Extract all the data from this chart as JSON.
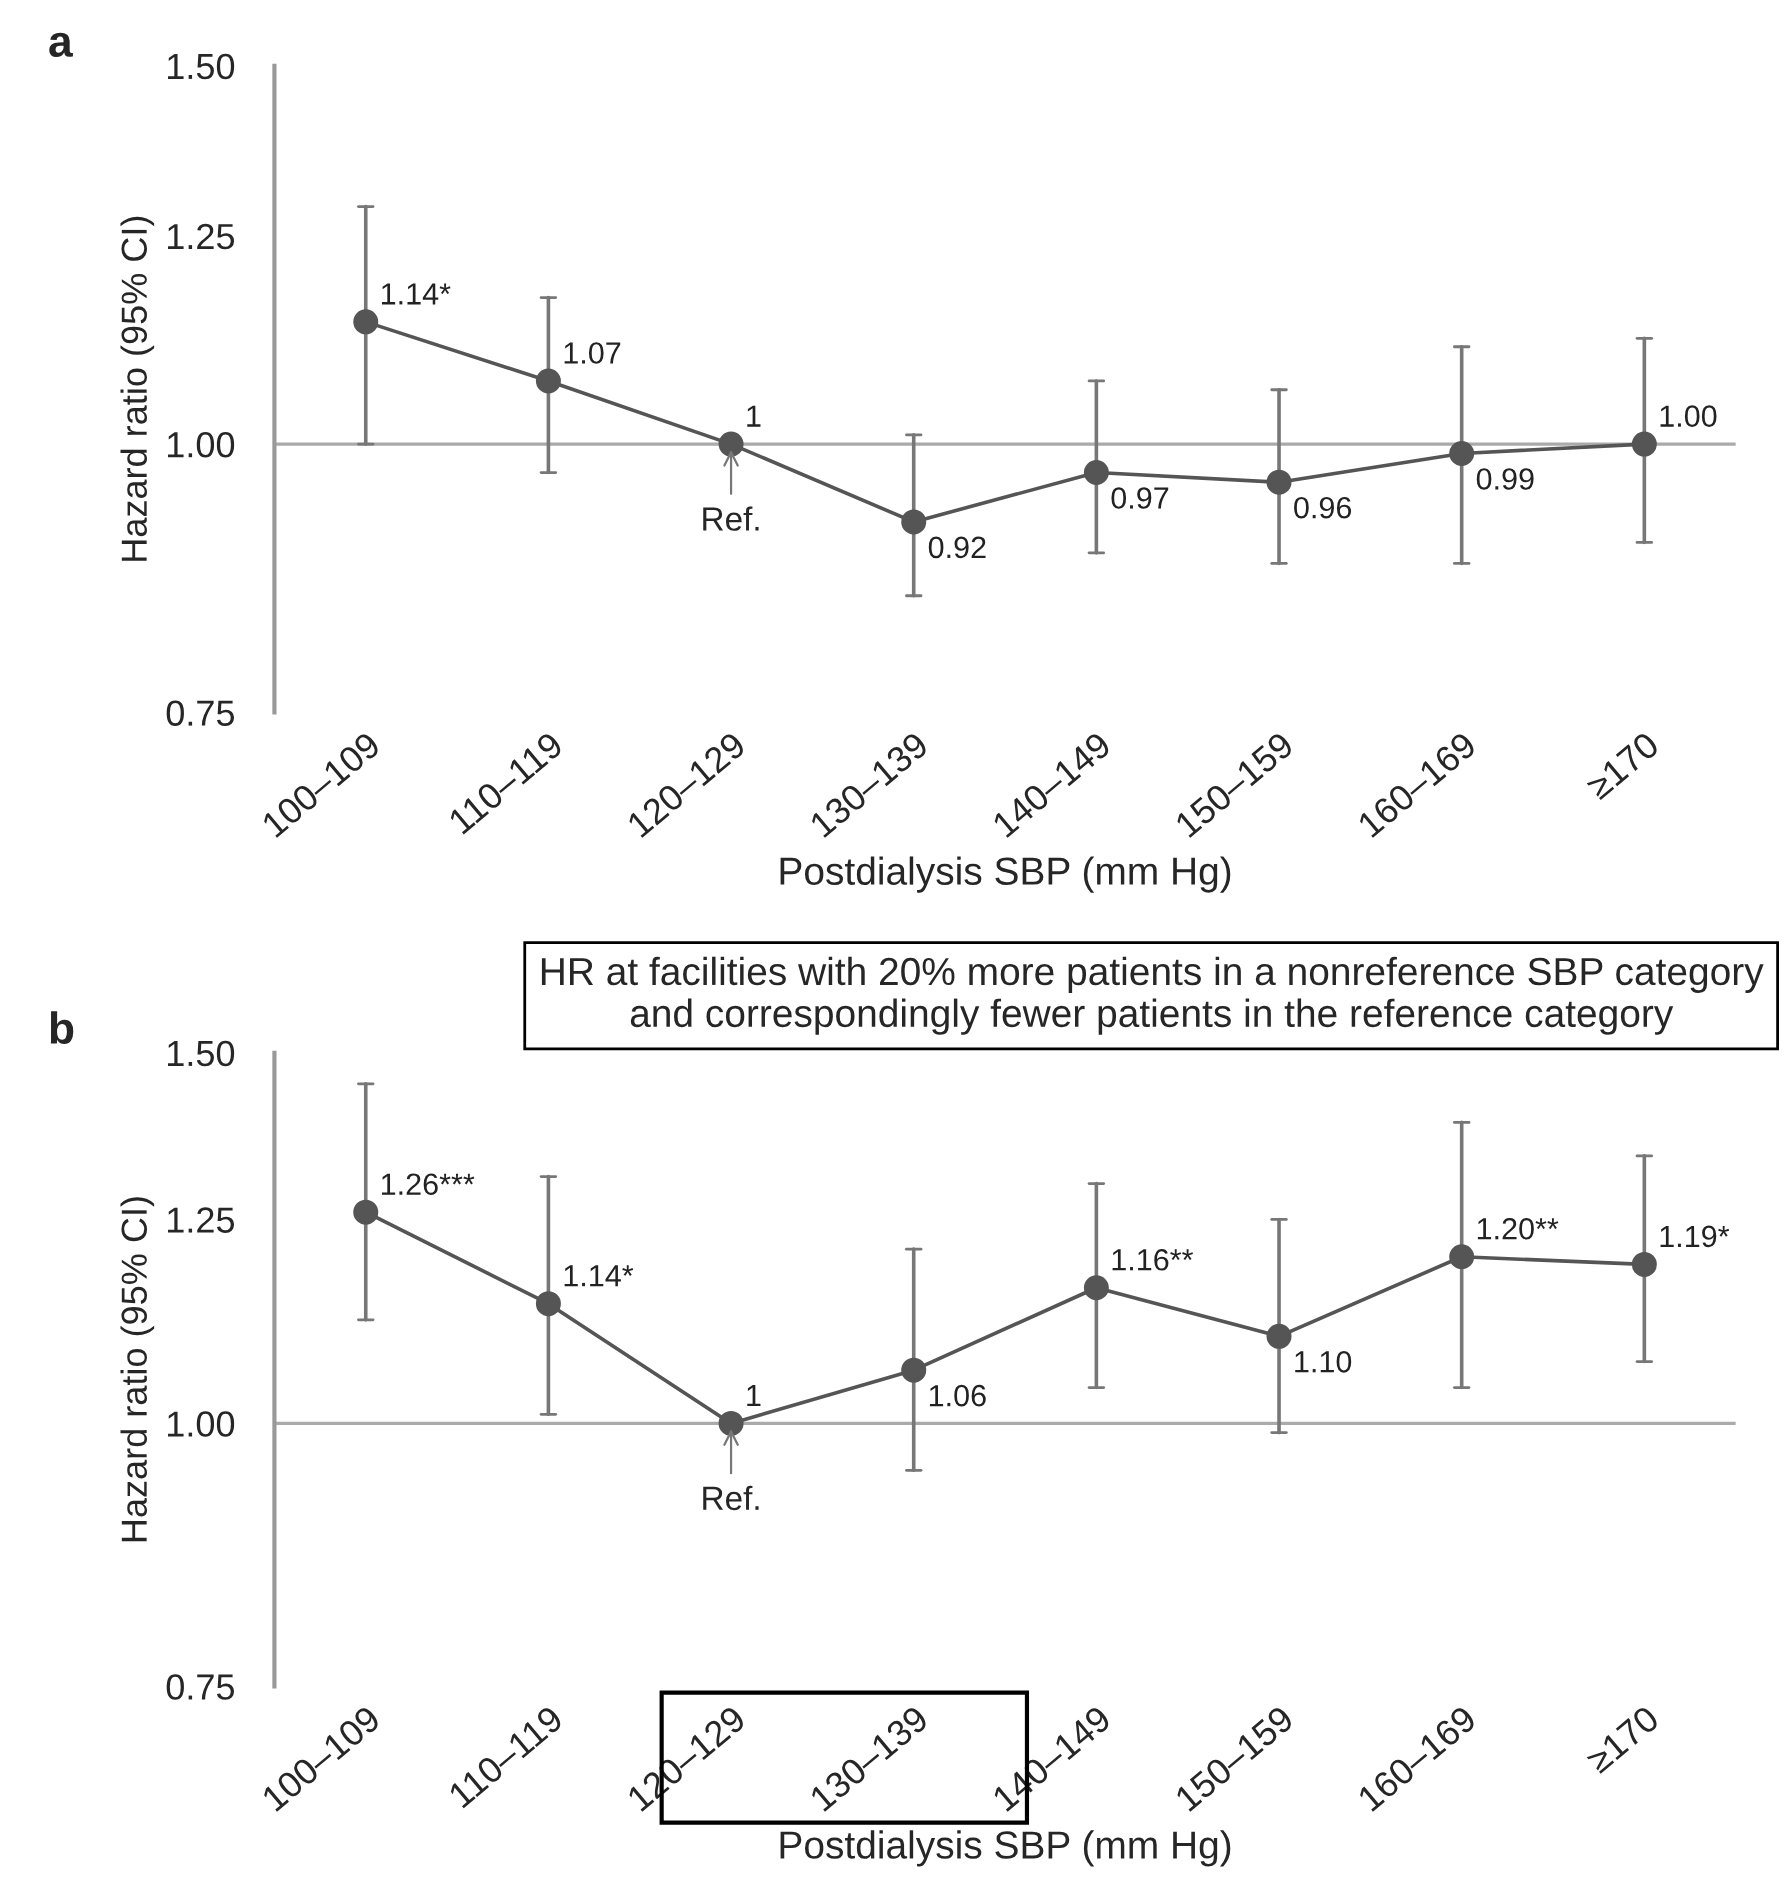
{
  "chart_data": [
    {
      "type": "line",
      "xlabel": "Postdialysis SBP (mm Hg)",
      "ylabel": "Hazard ratio (95% CI)",
      "categories": [
        "100–109",
        "110–119",
        "120–129",
        "130–139",
        "140–149",
        "150–159",
        "160–169",
        "≥170"
      ],
      "series": [
        {
          "color": "#555555",
          "values": [
            1.14,
            1.07,
            1,
            0.92,
            0.97,
            0.96,
            0.99,
            1.0
          ],
          "errors": [
            [
              1.0,
              1.29
            ],
            [
              0.97,
              1.17
            ],
            null,
            [
              0.85,
              1.01
            ],
            [
              0.89,
              1.07
            ],
            [
              0.88,
              1.06
            ],
            [
              0.88,
              1.11
            ],
            [
              0.9,
              1.12
            ]
          ],
          "value_labels": [
            "1.14*",
            "1.07",
            "1",
            "0.92",
            "0.97",
            "0.96",
            "0.99",
            "1.00"
          ]
        }
      ],
      "log": "y",
      "ylim": [
        0.75,
        1.5
      ],
      "yticks": [
        {
          "value": 0.75,
          "label": "0.75"
        },
        {
          "value": 1.0,
          "label": "1.00"
        },
        {
          "value": 1.25,
          "label": "1.25"
        },
        {
          "value": 1.5,
          "label": "1.50"
        }
      ],
      "ref_lines": [
        {
          "axis": "y",
          "value": 1.0,
          "color": "#aaaaaa"
        }
      ],
      "marker": "circle",
      "line_style": "solid",
      "grid": false,
      "annotations": [
        "a",
        {
          "text": "Ref.",
          "x": "120–129",
          "y": 1
        }
      ]
    },
    {
      "type": "line",
      "title": "HR at facilities with 20% more patients in a nonreference SBP category and correspondingly fewer patients in the reference category",
      "xlabel": "Postdialysis SBP (mm Hg)",
      "ylabel": "Hazard ratio (95% CI)",
      "categories": [
        "100–109",
        "110–119",
        "120–129",
        "130–139",
        "140–149",
        "150–159",
        "160–169",
        "≥170"
      ],
      "series": [
        {
          "color": "#555555",
          "values": [
            1.26,
            1.14,
            1,
            1.06,
            1.16,
            1.1,
            1.2,
            1.19
          ],
          "errors": [
            [
              1.12,
              1.45
            ],
            [
              1.01,
              1.31
            ],
            null,
            [
              0.95,
              1.21
            ],
            [
              1.04,
              1.3
            ],
            [
              0.99,
              1.25
            ],
            [
              1.04,
              1.39
            ],
            [
              1.07,
              1.34
            ]
          ],
          "value_labels": [
            "1.26***",
            "1.14*",
            "1",
            "1.06",
            "1.16**",
            "1.10",
            "1.20**",
            "1.19*"
          ]
        }
      ],
      "log": "y",
      "ylim": [
        0.75,
        1.5
      ],
      "yticks": [
        {
          "value": 0.75,
          "label": "0.75"
        },
        {
          "value": 1.0,
          "label": "1.00"
        },
        {
          "value": 1.25,
          "label": "1.25"
        },
        {
          "value": 1.5,
          "label": "1.50"
        }
      ],
      "ref_lines": [
        {
          "axis": "y",
          "value": 1.0,
          "color": "#aaaaaa"
        }
      ],
      "marker": "circle",
      "line_style": "solid",
      "grid": false,
      "annotations": [
        "b",
        {
          "text": "Ref.",
          "x": "120–129",
          "y": 1
        }
      ]
    }
  ]
}
